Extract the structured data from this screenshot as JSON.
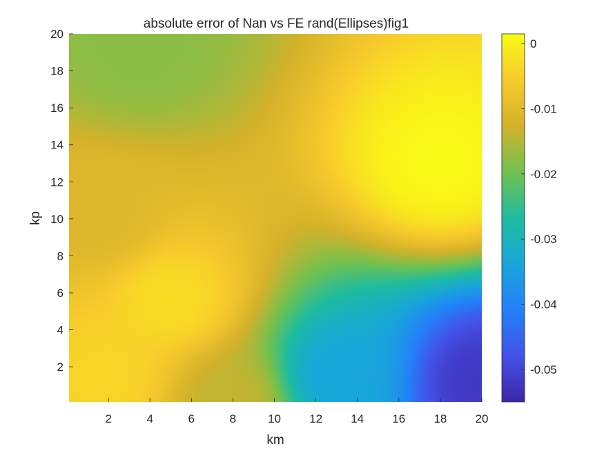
{
  "chart_data": {
    "type": "heatmap",
    "title": "absolute error of Nan vs FE rand(Ellipses)fig1",
    "xlabel": "km",
    "ylabel": "kp",
    "xlim": [
      0.1,
      20
    ],
    "ylim": [
      0.1,
      20
    ],
    "x_ticks": [
      "2",
      "4",
      "6",
      "8",
      "10",
      "12",
      "14",
      "16",
      "18",
      "20"
    ],
    "y_ticks": [
      "2",
      "4",
      "6",
      "8",
      "10",
      "12",
      "14",
      "16",
      "18",
      "20"
    ],
    "colorbar": {
      "colormap": "parula",
      "clim": [
        -0.055,
        0.0015
      ],
      "ticks": [
        "0",
        "-0.01",
        "-0.02",
        "-0.03",
        "-0.04",
        "-0.05"
      ]
    },
    "grid": false,
    "surface_features": [
      {
        "x": 18,
        "y": 13,
        "value": 0.0012
      },
      {
        "x": 3.5,
        "y": 19.2,
        "value": -0.018
      },
      {
        "x": 1.5,
        "y": 10,
        "value": -0.011
      },
      {
        "x": 5,
        "y": 5.5,
        "value": -0.003
      },
      {
        "x": 20,
        "y": 1.2,
        "value": -0.052
      },
      {
        "x": 13,
        "y": 1.5,
        "value": -0.034
      },
      {
        "x": 8,
        "y": 0.3,
        "value": -0.014
      },
      {
        "x": 2,
        "y": 1.5,
        "value": -0.004
      }
    ]
  }
}
